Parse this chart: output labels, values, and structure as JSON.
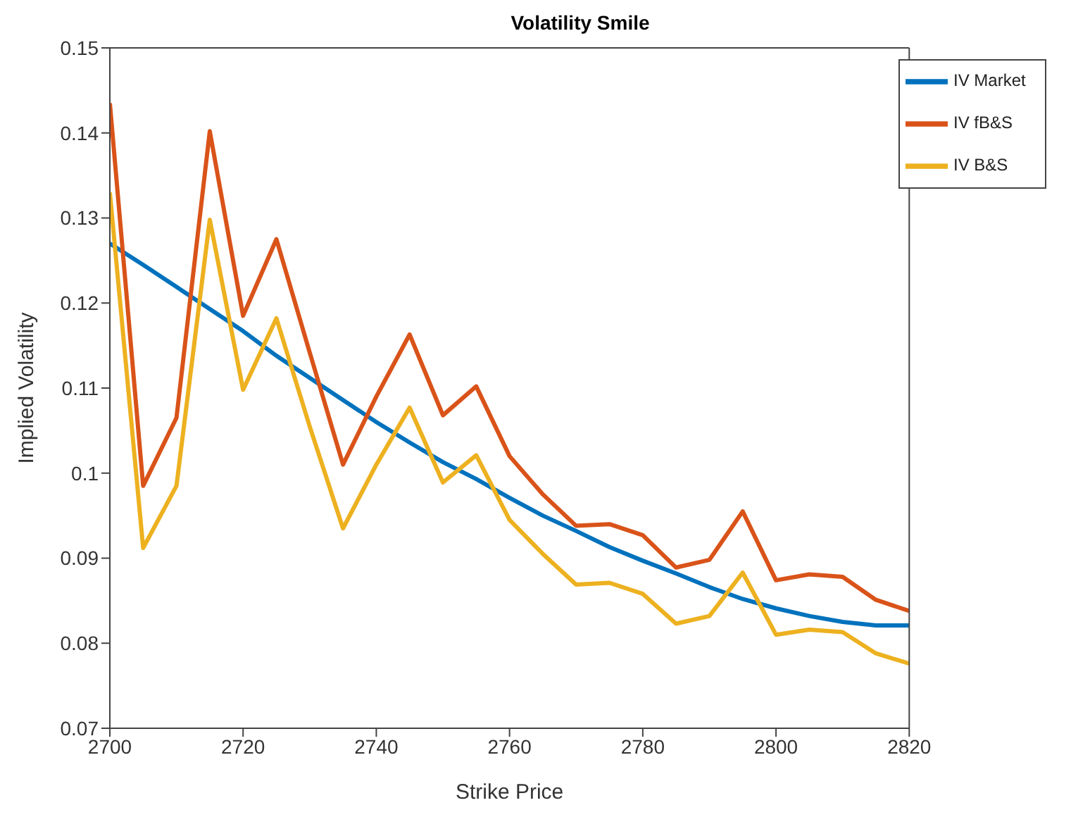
{
  "chart_data": {
    "type": "line",
    "title": "Volatility Smile",
    "xlabel": "Strike Price",
    "ylabel": "Implied Volatility",
    "x": [
      2700,
      2705,
      2710,
      2715,
      2720,
      2725,
      2730,
      2735,
      2740,
      2745,
      2750,
      2755,
      2760,
      2765,
      2770,
      2775,
      2780,
      2785,
      2790,
      2795,
      2800,
      2805,
      2810,
      2815,
      2820
    ],
    "series": [
      {
        "name": "IV Market",
        "color": "#0072bd",
        "values": [
          0.127,
          0.1245,
          0.1219,
          0.1193,
          0.1167,
          0.1138,
          0.1112,
          0.1086,
          0.106,
          0.1036,
          0.1013,
          0.0993,
          0.0971,
          0.095,
          0.0932,
          0.0913,
          0.0897,
          0.0882,
          0.0866,
          0.0852,
          0.0841,
          0.0832,
          0.0825,
          0.0821,
          0.0821
        ]
      },
      {
        "name": "IV fB&S",
        "color": "#d95319",
        "values": [
          0.1435,
          0.0985,
          0.1065,
          0.1402,
          0.1185,
          0.1275,
          0.1142,
          0.101,
          0.109,
          0.1163,
          0.1068,
          0.1102,
          0.102,
          0.0975,
          0.0938,
          0.094,
          0.0927,
          0.0889,
          0.0898,
          0.0955,
          0.0874,
          0.0881,
          0.0878,
          0.0851,
          0.0838
        ]
      },
      {
        "name": "IV B&S",
        "color": "#edb120",
        "values": [
          0.133,
          0.0912,
          0.0985,
          0.1298,
          0.1098,
          0.1182,
          0.1055,
          0.0935,
          0.101,
          0.1077,
          0.0989,
          0.1021,
          0.0945,
          0.0905,
          0.0869,
          0.0871,
          0.0858,
          0.0823,
          0.0832,
          0.0883,
          0.081,
          0.0816,
          0.0813,
          0.0788,
          0.0776
        ]
      }
    ],
    "xlim": [
      2700,
      2820
    ],
    "xticks": [
      2700,
      2720,
      2740,
      2760,
      2780,
      2800,
      2820
    ],
    "ylim": [
      0.07,
      0.15
    ],
    "yticks": [
      0.07,
      0.08,
      0.09,
      0.1,
      0.11,
      0.12,
      0.13,
      0.14,
      0.15
    ],
    "grid": false,
    "legend": "top right",
    "marker": "none",
    "line_style": "solid"
  }
}
